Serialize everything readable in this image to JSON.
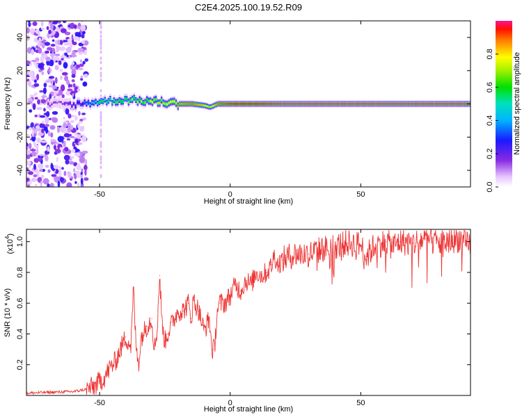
{
  "page": {
    "title": "C2E4.2025.100.19.52.R09"
  },
  "chart_data": [
    {
      "type": "heatmap",
      "title": "C2E4.2025.100.19.52.R09",
      "xlabel": "Height of straight line (km)",
      "ylabel": "Frequency (Hz)",
      "xlim": [
        -78,
        92
      ],
      "ylim": [
        -50,
        50
      ],
      "xticks": [
        "-50",
        "0",
        "50"
      ],
      "xtick_values": [
        -50,
        0,
        50
      ],
      "yticks": [
        "-40",
        "-20",
        "0",
        "20",
        "40"
      ],
      "ytick_values": [
        -40,
        -20,
        0,
        20,
        40
      ],
      "colorbar": {
        "label": "Normalized spectral amplitude",
        "ticks": [
          "0.0",
          "0.2",
          "0.4",
          "0.6",
          "0.8"
        ],
        "tick_values": [
          0.0,
          0.2,
          0.4,
          0.6,
          0.8
        ],
        "range": [
          0,
          1
        ]
      },
      "signal_track": {
        "x": [
          -70,
          -65,
          -60,
          -55,
          -50,
          -45,
          -40,
          -35,
          -30,
          -25,
          -20,
          -15,
          -10,
          -8,
          -5,
          0,
          5,
          10,
          20,
          40,
          60,
          80,
          92
        ],
        "frequency": [
          -1.0,
          0.2,
          -0.3,
          0.5,
          1.5,
          2.0,
          2.5,
          2.0,
          1.5,
          1.0,
          0.0,
          0.0,
          -1.0,
          -2.0,
          0.0,
          0.0,
          0.0,
          0.0,
          0.0,
          0.0,
          0.0,
          0.0,
          0.0
        ],
        "amplitude": [
          0.15,
          0.15,
          0.25,
          0.35,
          0.5,
          0.55,
          0.6,
          0.65,
          0.7,
          0.8,
          0.85,
          0.9,
          0.8,
          0.7,
          0.9,
          0.95,
          0.95,
          0.95,
          1.0,
          1.0,
          1.0,
          1.0,
          1.0
        ]
      },
      "noise_region_x": [
        -78,
        -55
      ]
    },
    {
      "type": "line",
      "xlabel": "Height of straight line (km)",
      "ylabel": "SNR (10 * v/v)",
      "y_multiplier": "(x10",
      "y_multiplier_exp": "4",
      "xlim": [
        -78,
        92
      ],
      "ylim": [
        0,
        1.08
      ],
      "xticks": [
        "-50",
        "0",
        "50"
      ],
      "xtick_values": [
        -50,
        0,
        50
      ],
      "yticks": [
        "0.2",
        "0.4",
        "0.6",
        "0.8",
        "1.0"
      ],
      "ytick_values": [
        0.2,
        0.4,
        0.6,
        0.8,
        1.0
      ],
      "series": [
        {
          "color": "#ee3333",
          "x": [
            -78,
            -70,
            -60,
            -55,
            -52,
            -50,
            -48,
            -46,
            -44,
            -42,
            -40,
            -38,
            -37,
            -36,
            -35,
            -34,
            -32,
            -30,
            -29,
            -28,
            -27,
            -26,
            -25,
            -24,
            -22,
            -20,
            -18,
            -16,
            -15,
            -14,
            -12,
            -10,
            -8,
            -7,
            -6,
            -5,
            -4,
            -2,
            0,
            2,
            4,
            6,
            8,
            10,
            12,
            14,
            16,
            17,
            18,
            20,
            22,
            25,
            30,
            35,
            40,
            45,
            50,
            52,
            55,
            58,
            60,
            62,
            65,
            70,
            75,
            80,
            85,
            88,
            90,
            92
          ],
          "y": [
            0.015,
            0.02,
            0.025,
            0.04,
            0.06,
            0.09,
            0.12,
            0.18,
            0.22,
            0.3,
            0.38,
            0.32,
            0.7,
            0.3,
            0.22,
            0.38,
            0.45,
            0.5,
            0.3,
            0.42,
            0.78,
            0.45,
            0.35,
            0.4,
            0.48,
            0.55,
            0.55,
            0.6,
            0.5,
            0.62,
            0.55,
            0.42,
            0.5,
            0.3,
            0.3,
            0.55,
            0.6,
            0.6,
            0.65,
            0.72,
            0.68,
            0.75,
            0.72,
            0.8,
            0.78,
            0.8,
            0.85,
            0.92,
            0.85,
            0.88,
            0.9,
            0.92,
            0.92,
            0.95,
            0.97,
            0.99,
            0.98,
            0.9,
            0.97,
            0.99,
            1.0,
            0.97,
            1.0,
            0.99,
            1.02,
            0.99,
            1.01,
            1.02,
            0.98,
            0.98
          ]
        }
      ]
    }
  ]
}
